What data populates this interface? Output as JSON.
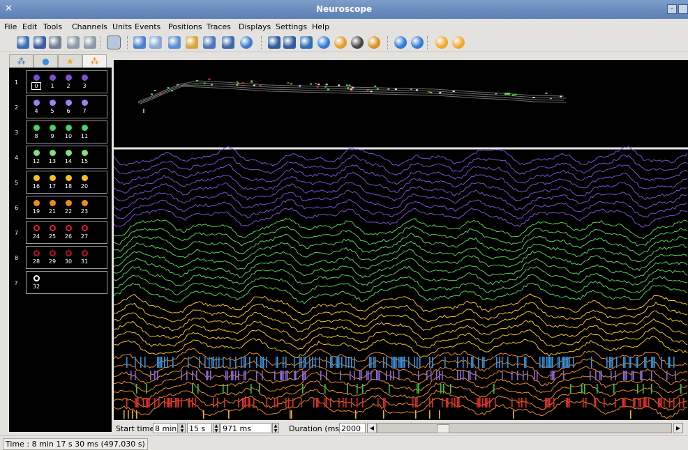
{
  "window": {
    "title": "Neuroscope"
  },
  "menu": [
    {
      "label": "File"
    },
    {
      "label": "Edit"
    },
    {
      "label": "Tools"
    },
    {
      "label": "Channels"
    },
    {
      "label": "Units"
    },
    {
      "label": "Events"
    },
    {
      "label": "Positions"
    },
    {
      "label": "Traces"
    },
    {
      "label": "Displays"
    },
    {
      "label": "Settings"
    },
    {
      "label": "Help"
    }
  ],
  "toolbar": [
    {
      "icon": "open-icon",
      "color": "#3b6fb5"
    },
    {
      "icon": "save-icon",
      "color": "#3a5da0"
    },
    {
      "icon": "print-icon",
      "color": "#6f7f95"
    },
    {
      "icon": "undo-icon",
      "color": "#8c9aa8"
    },
    {
      "icon": "redo-icon",
      "color": "#8c9aa8"
    },
    {
      "icon": "select-channel-icon",
      "color": "#5b88c2"
    },
    {
      "icon": "zoom-icon",
      "color": "#4b7fd1"
    },
    {
      "icon": "pointer-icon",
      "color": "#8aa8d6"
    },
    {
      "icon": "measure-icon",
      "color": "#5a8ed2"
    },
    {
      "icon": "select-time-icon",
      "color": "#d7a53a"
    },
    {
      "icon": "draw-line-icon",
      "color": "#4a76b8"
    },
    {
      "icon": "calibration-icon",
      "color": "#3d6aa8"
    },
    {
      "icon": "clock-icon",
      "color": "#3c7ad0"
    },
    {
      "icon": "cluster-display-icon",
      "color": "#2b5d99"
    },
    {
      "icon": "channel-display-icon",
      "color": "#2f5f9c"
    },
    {
      "icon": "database-icon",
      "color": "#2f6fb0"
    },
    {
      "icon": "blue-circle-icon",
      "color": "#2f7ad8"
    },
    {
      "icon": "orange-circle-icon",
      "color": "#e39a2d"
    },
    {
      "icon": "eye-icon",
      "color": "#444444"
    },
    {
      "icon": "eye-orange-icon",
      "color": "#d89226"
    },
    {
      "icon": "previous-icon",
      "color": "#2f7ad8"
    },
    {
      "icon": "next-icon",
      "color": "#2f7ad8"
    },
    {
      "icon": "previous-event-icon",
      "color": "#f0a82c"
    },
    {
      "icon": "next-event-icon",
      "color": "#f0a82c"
    }
  ],
  "palette_tabs": [
    {
      "icon": "channel-tree-icon",
      "color": "#3b6fb5"
    },
    {
      "icon": "channel-circle-icon",
      "color": "#3b8fd8"
    },
    {
      "icon": "star-icon",
      "color": "#f0a020"
    },
    {
      "icon": "spike-tree-icon",
      "color": "#e08a10"
    }
  ],
  "groups": [
    {
      "id": "1",
      "color": "#7b4fd6",
      "ring": false,
      "channels": [
        "0",
        "1",
        "2",
        "3"
      ]
    },
    {
      "id": "2",
      "color": "#a382e8",
      "ring": false,
      "channels": [
        "4",
        "5",
        "6",
        "7"
      ]
    },
    {
      "id": "3",
      "color": "#4fd24f",
      "ring": false,
      "channels": [
        "8",
        "9",
        "10",
        "11"
      ]
    },
    {
      "id": "4",
      "color": "#7fe07f",
      "ring": false,
      "channels": [
        "12",
        "13",
        "14",
        "15"
      ]
    },
    {
      "id": "5",
      "color": "#f4c21d",
      "ring": false,
      "channels": [
        "16",
        "17",
        "18",
        "20"
      ]
    },
    {
      "id": "6",
      "color": "#f08a1e",
      "ring": false,
      "channels": [
        "19",
        "21",
        "22",
        "23"
      ]
    },
    {
      "id": "7",
      "color": "#e0202a",
      "ring": true,
      "channels": [
        "24",
        "25",
        "26",
        "27"
      ]
    },
    {
      "id": "8",
      "color": "#b01820",
      "ring": true,
      "channels": [
        "28",
        "29",
        "30",
        "31"
      ]
    },
    {
      "id": "?",
      "color": "#ffffff",
      "ring": true,
      "channels": [
        "32"
      ]
    }
  ],
  "trace_colors": [
    "#7b4fd6",
    "#4fd24f",
    "#f4c21d",
    "#f08a1e"
  ],
  "spike_rows": [
    {
      "color": "#3a8fd8"
    },
    {
      "color": "#8b66dd"
    },
    {
      "color": "#3cc43c"
    },
    {
      "color": "#e02d2d"
    },
    {
      "color": "#f1b21f"
    }
  ],
  "controls": {
    "start_label": "Start time",
    "min_value": "8 min",
    "sec_value": "15 s",
    "ms_value": "971 ms",
    "duration_label": "Duration (ms)",
    "duration_value": "2000"
  },
  "status": {
    "text": "Time : 8 min 17 s 30 ms (497.030 s)"
  }
}
